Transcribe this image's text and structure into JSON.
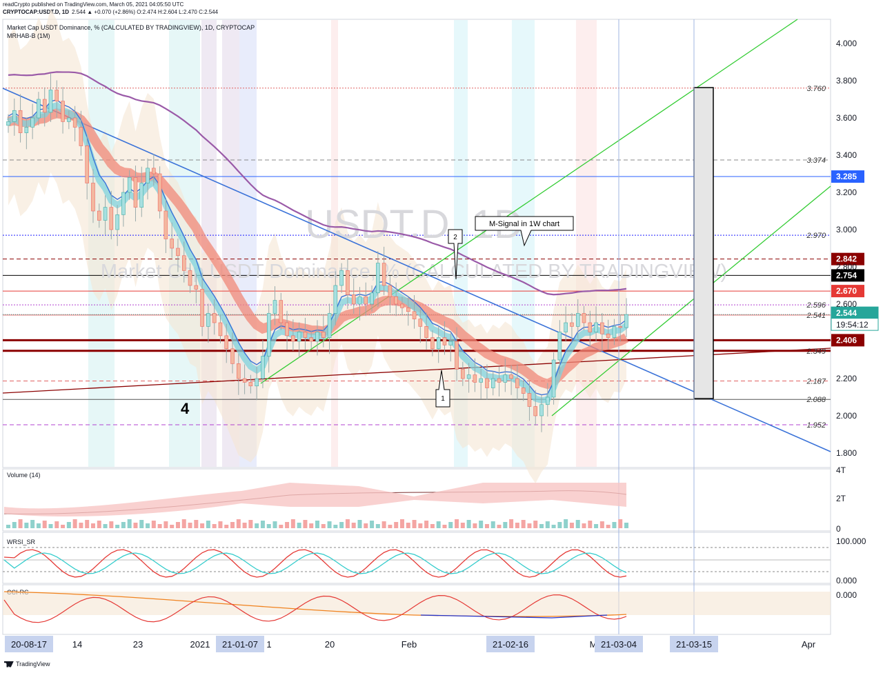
{
  "header": {
    "line1": "readCrypto published on TradingView.com, March 05, 2021 04:05:50 UTC",
    "symbol": "CRYPTOCAP:USDT.D, 1D",
    "ohlc": "2.544 ▲ +0.070 (+2.86%) O:2.474 H:2.604 L:2.470 C:2.544"
  },
  "main": {
    "title": "Market Cap USDT Dominance, % (CALCULATED BY TRADINGVIEW), 1D, CRYPTOCAP",
    "indicator": "MRHAB-B (1M)",
    "watermark_symbol": "USDT.D, 1D",
    "watermark_name": "Market Cap USDT Dominance, % (CALCULATED BY TRADINGVIEW)",
    "wave_4": "4",
    "wave_1": "1",
    "wave_2": "2",
    "callout": "M-Signal in 1W chart"
  },
  "price_axis": {
    "ticks": [
      "4.000",
      "3.800",
      "3.600",
      "3.400",
      "3.200",
      "3.000",
      "2.800",
      "2.600",
      "2.200",
      "2.000",
      "1.800"
    ]
  },
  "levels": [
    {
      "label": "3.760",
      "value": 3.76,
      "style": "dotted",
      "color": "#e06060"
    },
    {
      "label": "3.374",
      "value": 3.374,
      "style": "dashed",
      "color": "#888888"
    },
    {
      "label": "2.970",
      "value": 2.97,
      "style": "dotted",
      "color": "#1a1aff"
    },
    {
      "label": "2.596",
      "value": 2.596,
      "style": "dotted",
      "color": "#b040d0"
    },
    {
      "label": "2.541",
      "value": 2.541,
      "style": "solid",
      "color": "#e06060"
    },
    {
      "label": "2.349",
      "value": 2.349,
      "style": "solid",
      "color": "#8b0000"
    },
    {
      "label": "2.187",
      "value": 2.187,
      "style": "dashed",
      "color": "#e06060"
    },
    {
      "label": "2.088",
      "value": 2.088,
      "style": "solid",
      "color": "#555555"
    },
    {
      "label": "1.952",
      "value": 1.952,
      "style": "dashed",
      "color": "#b040d0"
    }
  ],
  "price_boxes": [
    {
      "label": "3.285",
      "value": 3.285,
      "color": "#2962ff"
    },
    {
      "label": "2.842",
      "value": 2.842,
      "color": "#8b0000"
    },
    {
      "label": "2.754",
      "value": 2.754,
      "color": "#000000"
    },
    {
      "label": "2.670",
      "value": 2.67,
      "color": "#e53935"
    },
    {
      "label": "2.406",
      "value": 2.406,
      "color": "#8b0000"
    }
  ],
  "last_price": {
    "label": "2.544",
    "countdown": "19:54:12",
    "value": 2.544,
    "color": "#26a69a"
  },
  "volume_pane": {
    "title": "Volume (14)",
    "ticks": [
      "4T",
      "2T",
      "0"
    ]
  },
  "rsi_pane": {
    "title": "WRSI_SR",
    "ticks": [
      "100.000",
      "0.000"
    ]
  },
  "cci_pane": {
    "title": "CCI-RC",
    "ticks": [
      "0.000"
    ]
  },
  "time_axis": {
    "labels": [
      {
        "text": "20-08-17",
        "highlight": true
      },
      {
        "text": "14",
        "highlight": false
      },
      {
        "text": "23",
        "highlight": false
      },
      {
        "text": "2021",
        "highlight": false
      },
      {
        "text": "21-01-07",
        "highlight": true
      },
      {
        "text": "1",
        "highlight": false
      },
      {
        "text": "20",
        "highlight": false
      },
      {
        "text": "Feb",
        "highlight": false
      },
      {
        "text": "21-02-16",
        "highlight": true
      },
      {
        "text": "M",
        "highlight": false
      },
      {
        "text": "21-03-04",
        "highlight": true
      },
      {
        "text": "21-03-15",
        "highlight": true
      },
      {
        "text": "Apr",
        "highlight": false
      }
    ]
  },
  "footer": {
    "brand": "TradingView"
  },
  "colors": {
    "up": "#26a69a",
    "down": "#ef5350",
    "background": "#ffffff"
  },
  "chart_data": {
    "type": "candlestick",
    "title": "Market Cap USDT Dominance, % (CALCULATED BY TRADINGVIEW), 1D, CRYPTOCAP",
    "y_unit": "%",
    "ylim": [
      1.75,
      4.2
    ],
    "close_series": [
      3.58,
      3.64,
      3.52,
      3.55,
      3.6,
      3.7,
      3.63,
      3.75,
      3.69,
      3.58,
      3.6,
      3.55,
      3.45,
      3.25,
      3.1,
      3.05,
      3.12,
      3.0,
      3.08,
      3.2,
      3.28,
      3.12,
      3.25,
      3.33,
      3.3,
      3.1,
      2.95,
      2.9,
      2.86,
      2.78,
      2.7,
      2.68,
      2.48,
      2.55,
      2.5,
      2.43,
      2.36,
      2.28,
      2.2,
      2.18,
      2.16,
      2.2,
      2.32,
      2.55,
      2.62,
      2.5,
      2.43,
      2.4,
      2.45,
      2.42,
      2.4,
      2.45,
      2.42,
      2.55,
      2.7,
      2.78,
      2.65,
      2.6,
      2.64,
      2.6,
      2.66,
      2.82,
      2.7,
      2.64,
      2.6,
      2.58,
      2.56,
      2.52,
      2.48,
      2.42,
      2.36,
      2.42,
      2.38,
      2.4,
      2.25,
      2.2,
      2.22,
      2.18,
      2.2,
      2.15,
      2.2,
      2.18,
      2.22,
      2.2,
      2.15,
      2.12,
      2.05,
      2.0,
      2.06,
      2.1,
      2.3,
      2.45,
      2.5,
      2.48,
      2.55,
      2.5,
      2.45,
      2.5,
      2.44,
      2.42,
      2.48,
      2.474,
      2.544
    ],
    "annotations": [
      "4",
      "1",
      "2",
      "M-Signal in 1W chart"
    ],
    "grid": true
  }
}
